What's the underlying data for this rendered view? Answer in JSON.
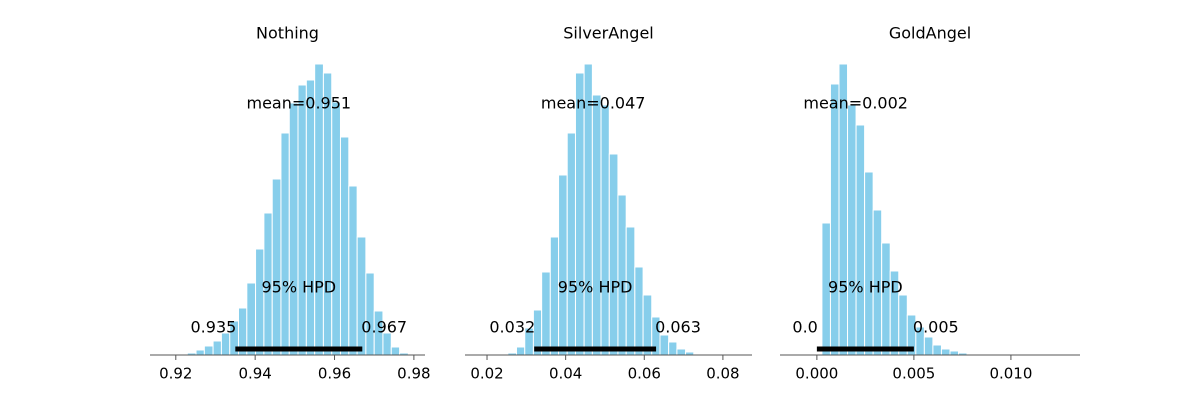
{
  "chart_data": [
    {
      "type": "histogram",
      "title": "Nothing",
      "color": "#87ceeb",
      "bins": [
        0.9208,
        0.9229,
        0.9251,
        0.9272,
        0.9294,
        0.9315,
        0.9336,
        0.9358,
        0.9379,
        0.9401,
        0.9422,
        0.9443,
        0.9465,
        0.9486,
        0.9508,
        0.9529,
        0.955,
        0.9572,
        0.9593,
        0.9615,
        0.9636,
        0.9657,
        0.9679,
        0.97,
        0.9722,
        0.9743,
        0.9764,
        0.9786
      ],
      "values": [
        1,
        2,
        5,
        9,
        14,
        22,
        34,
        47,
        72,
        106,
        142,
        176,
        222,
        252,
        270,
        275,
        291,
        282,
        253,
        218,
        169,
        118,
        82,
        44,
        22,
        8,
        2
      ],
      "xlim": [
        0.9135,
        0.9828
      ],
      "xticks": [
        0.92,
        0.94,
        0.96,
        0.98
      ],
      "ylim": [
        0,
        306
      ],
      "mean": 0.951,
      "mean_label": "mean=0.951",
      "hpd_label": "95% HPD",
      "hpd": [
        0.935,
        0.967
      ]
    },
    {
      "type": "histogram",
      "title": "SilverAngel",
      "color": "#87ceeb",
      "bins": [
        0.0253,
        0.0275,
        0.0296,
        0.0318,
        0.0339,
        0.0361,
        0.0382,
        0.0404,
        0.0425,
        0.0447,
        0.0468,
        0.049,
        0.0511,
        0.0533,
        0.0554,
        0.0576,
        0.0597,
        0.0619,
        0.064,
        0.0662,
        0.0683,
        0.0705,
        0.0726,
        0.0748
      ],
      "values": [
        2,
        8,
        27,
        45,
        83,
        118,
        180,
        222,
        282,
        291,
        260,
        250,
        201,
        160,
        128,
        88,
        60,
        38,
        20,
        13,
        6,
        3,
        1
      ],
      "xlim": [
        0.0144,
        0.0874
      ],
      "xticks": [
        0.02,
        0.04,
        0.06,
        0.08
      ],
      "ylim": [
        0,
        306
      ],
      "mean": 0.047,
      "mean_label": "mean=0.047",
      "hpd_label": "95% HPD",
      "hpd": [
        0.032,
        0.063
      ]
    },
    {
      "type": "histogram",
      "title": "GoldAngel",
      "color": "#87ceeb",
      "bins": [
        0.00026,
        0.0007,
        0.00114,
        0.00158,
        0.00202,
        0.00246,
        0.0029,
        0.00334,
        0.00378,
        0.00422,
        0.00466,
        0.0051,
        0.00554,
        0.00598,
        0.00642,
        0.00686,
        0.0073,
        0.00774,
        0.00818,
        0.00862
      ],
      "values": [
        132,
        271,
        291,
        250,
        230,
        183,
        145,
        112,
        84,
        60,
        40,
        28,
        18,
        10,
        6,
        4,
        2,
        1,
        1
      ],
      "xlim": [
        -0.0019,
        0.01356
      ],
      "xticks": [
        {
          "value": 0,
          "label": "0.000"
        },
        {
          "value": 0.005,
          "label": "0.005"
        },
        {
          "value": 0.01,
          "label": "0.010"
        }
      ],
      "ylim": [
        0,
        306
      ],
      "mean": 0.002,
      "mean_label": "mean=0.002",
      "hpd_label": "95% HPD",
      "hpd": [
        {
          "value": 0,
          "label": "0.0"
        },
        0.005
      ]
    }
  ]
}
